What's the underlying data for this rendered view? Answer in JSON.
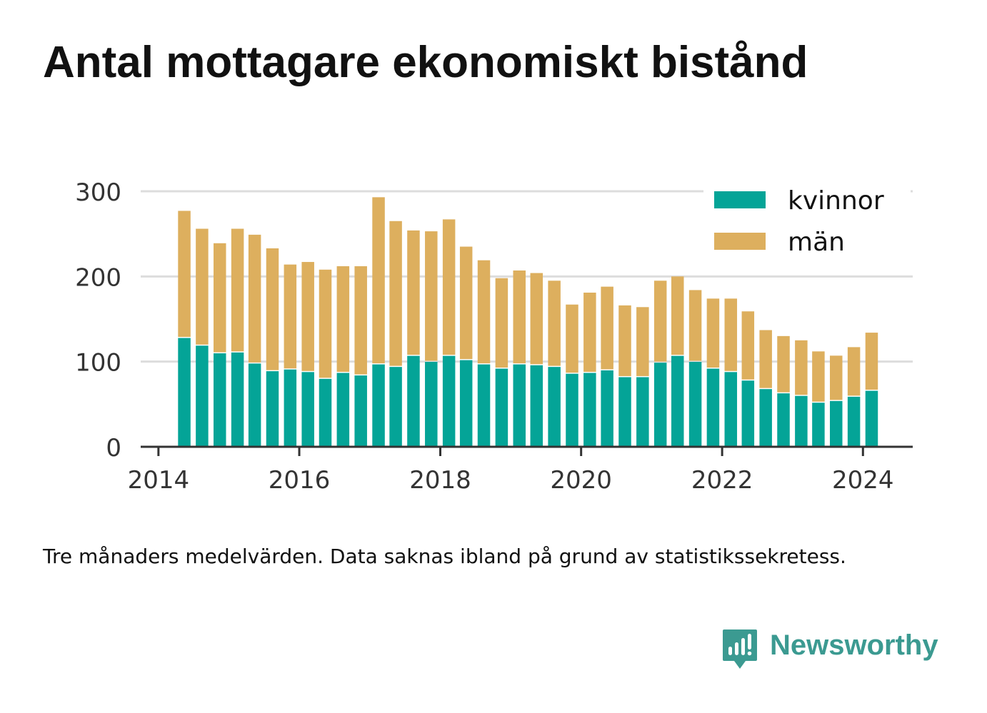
{
  "title": "Antal mottagare ekonomiskt bistånd",
  "caption": "Tre månaders medelvärden. Data saknas ibland på grund av statistikssekretess.",
  "brand": {
    "name": "Newsworthy"
  },
  "colors": {
    "kvinnor": "#04a497",
    "man": "#ddaf5e",
    "grid": "#dddddd",
    "axis": "#333333",
    "text": "#333333",
    "brand": "#3b9a91"
  },
  "chart_data": {
    "type": "bar",
    "stacked": true,
    "x": [
      "2014-05",
      "2014-08",
      "2014-11",
      "2015-02",
      "2015-05",
      "2015-08",
      "2015-11",
      "2016-02",
      "2016-05",
      "2016-08",
      "2016-11",
      "2017-02",
      "2017-05",
      "2017-08",
      "2017-11",
      "2018-02",
      "2018-05",
      "2018-08",
      "2018-11",
      "2019-02",
      "2019-05",
      "2019-08",
      "2019-11",
      "2020-02",
      "2020-05",
      "2020-08",
      "2020-11",
      "2021-02",
      "2021-05",
      "2021-08",
      "2021-11",
      "2022-02",
      "2022-05",
      "2022-08",
      "2022-11",
      "2023-02",
      "2023-05",
      "2023-08",
      "2023-11",
      "2024-02"
    ],
    "series": [
      {
        "name": "kvinnor",
        "color": "#04a497",
        "values": [
          129,
          120,
          111,
          112,
          99,
          90,
          92,
          89,
          81,
          88,
          85,
          98,
          95,
          108,
          101,
          108,
          103,
          98,
          93,
          98,
          97,
          95,
          87,
          88,
          91,
          83,
          83,
          100,
          108,
          101,
          93,
          89,
          79,
          69,
          64,
          61,
          53,
          55,
          60,
          67
        ]
      },
      {
        "name": "män",
        "color": "#ddaf5e",
        "values": [
          148,
          136,
          128,
          144,
          150,
          143,
          122,
          128,
          127,
          124,
          127,
          195,
          170,
          146,
          152,
          159,
          132,
          121,
          105,
          109,
          107,
          100,
          80,
          93,
          97,
          83,
          81,
          95,
          92,
          83,
          81,
          85,
          80,
          68,
          66,
          64,
          59,
          52,
          57,
          67
        ]
      }
    ],
    "x_ticks": [
      "2014",
      "2016",
      "2018",
      "2020",
      "2022",
      "2024"
    ],
    "y_ticks": [
      "0",
      "100",
      "200",
      "300"
    ],
    "ylim": [
      0,
      300
    ],
    "xlim": [
      "2013-10-01",
      "2024-09-15"
    ],
    "legend": {
      "position": "top-right",
      "entries": [
        "kvinnor",
        "män"
      ]
    },
    "grid": "horizontal"
  }
}
